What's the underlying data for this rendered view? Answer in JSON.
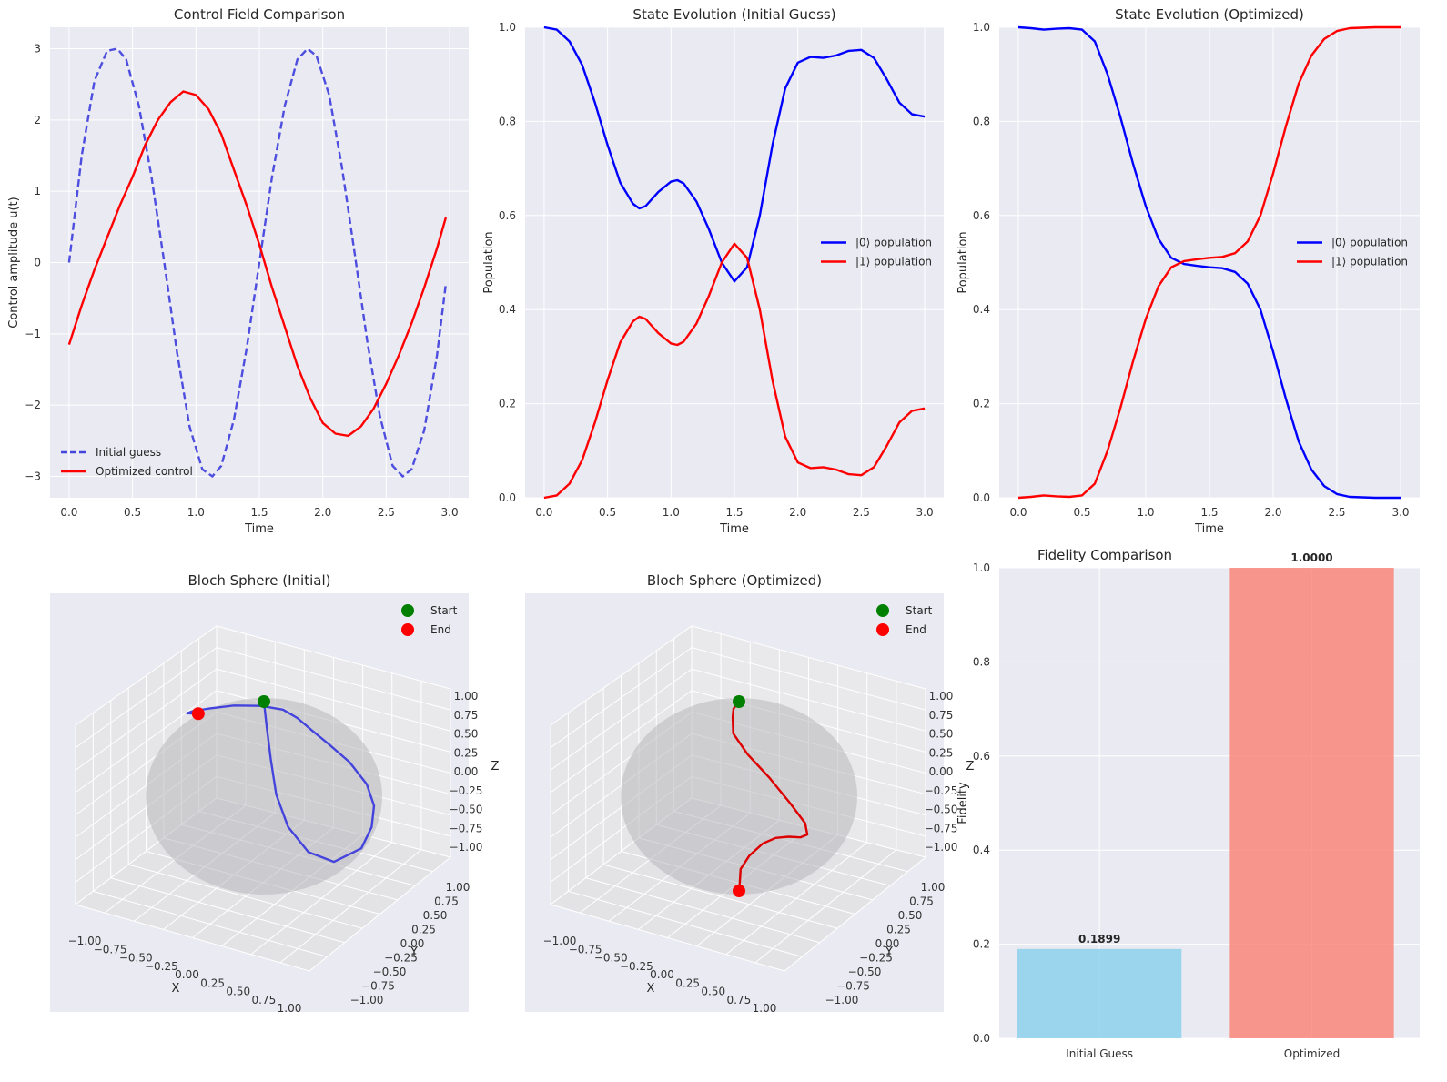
{
  "colors": {
    "panel_bg": "#eaeaf2",
    "grid": "#ffffff",
    "blue": "#0000ff",
    "blue_light": "#4444dd",
    "red": "#ff0000",
    "green": "#008000",
    "bar_initial": "#87ceeb",
    "bar_optimized": "#fa8072"
  },
  "chart_data": [
    {
      "id": "control",
      "type": "line",
      "title": "Control Field Comparison",
      "xlabel": "Time",
      "ylabel": "Control amplitude u(t)",
      "xlim": [
        -0.15,
        3.15
      ],
      "ylim": [
        -3.3,
        3.3
      ],
      "xticks": [
        "0.0",
        "0.5",
        "1.0",
        "1.5",
        "2.0",
        "2.5",
        "3.0"
      ],
      "xtick_values": [
        0,
        0.5,
        1,
        1.5,
        2,
        2.5,
        3
      ],
      "yticks": [
        "−3",
        "−2",
        "−1",
        "0",
        "1",
        "2",
        "3"
      ],
      "ytick_values": [
        -3,
        -2,
        -1,
        0,
        1,
        2,
        3
      ],
      "grid": true,
      "legend_position": "lower-left",
      "series": [
        {
          "name": "Initial guess",
          "style": "dashed",
          "color": "#4444dd",
          "x": [
            0,
            0.1,
            0.2,
            0.3,
            0.38,
            0.45,
            0.55,
            0.65,
            0.75,
            0.85,
            0.95,
            1.05,
            1.13,
            1.2,
            1.3,
            1.4,
            1.5,
            1.6,
            1.7,
            1.8,
            1.88,
            1.95,
            2.05,
            2.15,
            2.25,
            2.35,
            2.45,
            2.55,
            2.63,
            2.7,
            2.8,
            2.9,
            2.97
          ],
          "y": [
            0,
            1.5,
            2.55,
            2.97,
            3.0,
            2.85,
            2.2,
            1.2,
            0.0,
            -1.25,
            -2.3,
            -2.9,
            -3.0,
            -2.85,
            -2.2,
            -1.2,
            0.0,
            1.2,
            2.2,
            2.85,
            3.0,
            2.9,
            2.35,
            1.35,
            0.15,
            -1.1,
            -2.15,
            -2.85,
            -3.0,
            -2.9,
            -2.35,
            -1.3,
            -0.3
          ]
        },
        {
          "name": "Optimized control",
          "style": "solid",
          "color": "#ff0000",
          "x": [
            0,
            0.1,
            0.2,
            0.3,
            0.4,
            0.5,
            0.6,
            0.7,
            0.8,
            0.9,
            1.0,
            1.1,
            1.2,
            1.3,
            1.4,
            1.5,
            1.6,
            1.7,
            1.8,
            1.9,
            2.0,
            2.1,
            2.2,
            2.3,
            2.4,
            2.5,
            2.6,
            2.7,
            2.8,
            2.9,
            2.97
          ],
          "y": [
            -1.15,
            -0.6,
            -0.1,
            0.35,
            0.8,
            1.2,
            1.65,
            2.0,
            2.25,
            2.4,
            2.35,
            2.15,
            1.8,
            1.3,
            0.8,
            0.25,
            -0.35,
            -0.9,
            -1.45,
            -1.9,
            -2.25,
            -2.4,
            -2.43,
            -2.3,
            -2.05,
            -1.7,
            -1.3,
            -0.85,
            -0.35,
            0.2,
            0.63
          ]
        }
      ]
    },
    {
      "id": "state_initial",
      "type": "line",
      "title": "State Evolution (Initial Guess)",
      "xlabel": "Time",
      "ylabel": "Population",
      "xlim": [
        -0.15,
        3.15
      ],
      "ylim": [
        0,
        1
      ],
      "xticks": [
        "0.0",
        "0.5",
        "1.0",
        "1.5",
        "2.0",
        "2.5",
        "3.0"
      ],
      "xtick_values": [
        0,
        0.5,
        1,
        1.5,
        2,
        2.5,
        3
      ],
      "yticks": [
        "0.0",
        "0.2",
        "0.4",
        "0.6",
        "0.8",
        "1.0"
      ],
      "ytick_values": [
        0,
        0.2,
        0.4,
        0.6,
        0.8,
        1.0
      ],
      "grid": true,
      "legend_position": "center-right",
      "series": [
        {
          "name": "|0⟩ population",
          "color": "#0000ff",
          "x": [
            0,
            0.1,
            0.2,
            0.3,
            0.4,
            0.5,
            0.6,
            0.7,
            0.75,
            0.8,
            0.9,
            1.0,
            1.05,
            1.1,
            1.2,
            1.3,
            1.4,
            1.5,
            1.6,
            1.7,
            1.8,
            1.9,
            2.0,
            2.1,
            2.2,
            2.3,
            2.4,
            2.5,
            2.6,
            2.7,
            2.8,
            2.9,
            3.0
          ],
          "y": [
            1.0,
            0.995,
            0.97,
            0.92,
            0.84,
            0.75,
            0.67,
            0.625,
            0.615,
            0.62,
            0.65,
            0.672,
            0.675,
            0.668,
            0.63,
            0.57,
            0.5,
            0.46,
            0.49,
            0.6,
            0.75,
            0.87,
            0.925,
            0.937,
            0.935,
            0.94,
            0.95,
            0.952,
            0.935,
            0.89,
            0.84,
            0.815,
            0.81
          ]
        },
        {
          "name": "|1⟩ population",
          "color": "#ff0000",
          "x": [
            0,
            0.1,
            0.2,
            0.3,
            0.4,
            0.5,
            0.6,
            0.7,
            0.75,
            0.8,
            0.9,
            1.0,
            1.05,
            1.1,
            1.2,
            1.3,
            1.4,
            1.5,
            1.6,
            1.7,
            1.8,
            1.9,
            2.0,
            2.1,
            2.2,
            2.3,
            2.4,
            2.5,
            2.6,
            2.7,
            2.8,
            2.9,
            3.0
          ],
          "y": [
            0.0,
            0.005,
            0.03,
            0.08,
            0.16,
            0.25,
            0.33,
            0.375,
            0.385,
            0.38,
            0.35,
            0.328,
            0.325,
            0.332,
            0.37,
            0.43,
            0.5,
            0.54,
            0.51,
            0.4,
            0.25,
            0.13,
            0.075,
            0.063,
            0.065,
            0.06,
            0.05,
            0.048,
            0.065,
            0.11,
            0.16,
            0.185,
            0.19
          ]
        }
      ]
    },
    {
      "id": "state_optimized",
      "type": "line",
      "title": "State Evolution (Optimized)",
      "xlabel": "Time",
      "ylabel": "Population",
      "xlim": [
        -0.15,
        3.15
      ],
      "ylim": [
        0,
        1
      ],
      "xticks": [
        "0.0",
        "0.5",
        "1.0",
        "1.5",
        "2.0",
        "2.5",
        "3.0"
      ],
      "xtick_values": [
        0,
        0.5,
        1,
        1.5,
        2,
        2.5,
        3
      ],
      "yticks": [
        "0.0",
        "0.2",
        "0.4",
        "0.6",
        "0.8",
        "1.0"
      ],
      "ytick_values": [
        0,
        0.2,
        0.4,
        0.6,
        0.8,
        1.0
      ],
      "grid": true,
      "legend_position": "center-right",
      "series": [
        {
          "name": "|0⟩ population",
          "color": "#0000ff",
          "x": [
            0,
            0.1,
            0.2,
            0.3,
            0.4,
            0.5,
            0.6,
            0.7,
            0.8,
            0.9,
            1.0,
            1.1,
            1.2,
            1.3,
            1.4,
            1.5,
            1.6,
            1.7,
            1.8,
            1.9,
            2.0,
            2.1,
            2.2,
            2.3,
            2.4,
            2.5,
            2.6,
            2.7,
            2.8,
            2.9,
            3.0
          ],
          "y": [
            1.0,
            0.998,
            0.995,
            0.997,
            0.998,
            0.995,
            0.97,
            0.9,
            0.81,
            0.71,
            0.62,
            0.55,
            0.51,
            0.497,
            0.493,
            0.49,
            0.488,
            0.48,
            0.455,
            0.4,
            0.31,
            0.21,
            0.12,
            0.06,
            0.025,
            0.008,
            0.002,
            0.001,
            0.0,
            0.0,
            0.0
          ]
        },
        {
          "name": "|1⟩ population",
          "color": "#ff0000",
          "x": [
            0,
            0.1,
            0.2,
            0.3,
            0.4,
            0.5,
            0.6,
            0.7,
            0.8,
            0.9,
            1.0,
            1.1,
            1.2,
            1.3,
            1.4,
            1.5,
            1.6,
            1.7,
            1.8,
            1.9,
            2.0,
            2.1,
            2.2,
            2.3,
            2.4,
            2.5,
            2.6,
            2.7,
            2.8,
            2.9,
            3.0
          ],
          "y": [
            0.0,
            0.002,
            0.005,
            0.003,
            0.002,
            0.005,
            0.03,
            0.1,
            0.19,
            0.29,
            0.38,
            0.45,
            0.49,
            0.503,
            0.507,
            0.51,
            0.512,
            0.52,
            0.545,
            0.6,
            0.69,
            0.79,
            0.88,
            0.94,
            0.975,
            0.992,
            0.998,
            0.999,
            1.0,
            1.0,
            1.0
          ]
        }
      ]
    },
    {
      "id": "bloch_initial",
      "type": "scatter",
      "projection": "3d",
      "title": "Bloch Sphere (Initial)",
      "xlabel": "X",
      "ylabel": "Y",
      "zlabel": "Z",
      "axis_ticks": [
        "−1.00",
        "−0.75",
        "−0.50",
        "−0.25",
        "0.00",
        "0.25",
        "0.50",
        "0.75",
        "1.00"
      ],
      "axis_tick_values": [
        -1,
        -0.75,
        -0.5,
        -0.25,
        0,
        0.25,
        0.5,
        0.75,
        1
      ],
      "legend_position": "top-right",
      "trajectory_color": "#4444dd",
      "markers": [
        {
          "name": "Start",
          "color": "#008000",
          "x": 0,
          "y": 0,
          "z": 1
        },
        {
          "name": "End",
          "color": "#ff0000",
          "x": -0.5,
          "y": -0.3,
          "z": 0.81
        }
      ],
      "trajectory": {
        "x": [
          0.0,
          0.1,
          0.25,
          0.45,
          0.65,
          0.8,
          0.9,
          0.95,
          0.85,
          0.7,
          0.55,
          0.4,
          0.28,
          0.2,
          0.15,
          0.1,
          0.0,
          -0.15,
          -0.3,
          -0.45,
          -0.55,
          -0.5
        ],
        "y": [
          0.0,
          -0.1,
          -0.25,
          -0.45,
          -0.55,
          -0.45,
          -0.2,
          0.15,
          0.45,
          0.7,
          0.8,
          0.75,
          0.6,
          0.45,
          0.3,
          0.15,
          -0.05,
          -0.25,
          -0.4,
          -0.45,
          -0.4,
          -0.3
        ],
        "z": [
          1.0,
          0.8,
          0.55,
          0.3,
          0.05,
          -0.2,
          -0.35,
          -0.3,
          -0.2,
          -0.1,
          0.05,
          0.25,
          0.45,
          0.62,
          0.78,
          0.9,
          0.97,
          0.99,
          0.96,
          0.9,
          0.83,
          0.81
        ]
      }
    },
    {
      "id": "bloch_optimized",
      "type": "scatter",
      "projection": "3d",
      "title": "Bloch Sphere (Optimized)",
      "xlabel": "X",
      "ylabel": "Y",
      "zlabel": "Z",
      "axis_ticks": [
        "−1.00",
        "−0.75",
        "−0.50",
        "−0.25",
        "0.00",
        "0.25",
        "0.50",
        "0.75",
        "1.00"
      ],
      "axis_tick_values": [
        -1,
        -0.75,
        -0.5,
        -0.25,
        0,
        0.25,
        0.5,
        0.75,
        1
      ],
      "legend_position": "top-right",
      "trajectory_color": "#dd0000",
      "markers": [
        {
          "name": "Start",
          "color": "#008000",
          "x": 0,
          "y": 0,
          "z": 1
        },
        {
          "name": "End",
          "color": "#ff0000",
          "x": 0,
          "y": 0,
          "z": -1
        }
      ],
      "trajectory": {
        "x": [
          0.0,
          -0.05,
          -0.2,
          -0.35,
          -0.45,
          -0.4,
          -0.2,
          0.1,
          0.4,
          0.6,
          0.7,
          0.75,
          0.75,
          0.68,
          0.5,
          0.3,
          0.15,
          0.0
        ],
        "y": [
          0.0,
          0.05,
          0.2,
          0.4,
          0.55,
          0.7,
          0.75,
          0.65,
          0.45,
          0.2,
          -0.05,
          -0.3,
          -0.5,
          -0.6,
          -0.55,
          -0.4,
          -0.2,
          0.0
        ],
        "z": [
          1.0,
          0.95,
          0.8,
          0.6,
          0.35,
          0.1,
          -0.1,
          -0.25,
          -0.3,
          -0.28,
          -0.2,
          -0.1,
          -0.05,
          -0.1,
          -0.3,
          -0.55,
          -0.8,
          -1.0
        ]
      }
    },
    {
      "id": "fidelity",
      "type": "bar",
      "title": "Fidelity Comparison",
      "xlabel": "",
      "ylabel": "Fidelity",
      "categories": [
        "Initial Guess",
        "Optimized"
      ],
      "values": [
        0.1899,
        1.0
      ],
      "value_labels": [
        "0.1899",
        "1.0000"
      ],
      "bar_colors": [
        "#87ceeb",
        "#fa8072"
      ],
      "ylim": [
        0,
        1
      ],
      "yticks": [
        "0.0",
        "0.2",
        "0.4",
        "0.6",
        "0.8",
        "1.0"
      ],
      "ytick_values": [
        0,
        0.2,
        0.4,
        0.6,
        0.8,
        1.0
      ],
      "grid": true
    }
  ]
}
